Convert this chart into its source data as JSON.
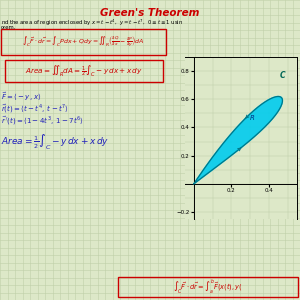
{
  "title": "Green's Theorem",
  "title_color": "#cc0000",
  "bg_color": "#dde8c8",
  "grid_color": "#c0cfa8",
  "plot_bg": "#dde8c8",
  "curve_fill_color": "#00ccee",
  "curve_edge_color": "#007788",
  "xlim": [
    -0.05,
    0.55
  ],
  "ylim": [
    -0.25,
    0.9
  ],
  "xticks": [
    0.2,
    0.4
  ],
  "yticks": [
    -0.2,
    0.2,
    0.4,
    0.6,
    0.8
  ],
  "fig_w": 3.0,
  "fig_h": 3.0,
  "dpi": 100
}
